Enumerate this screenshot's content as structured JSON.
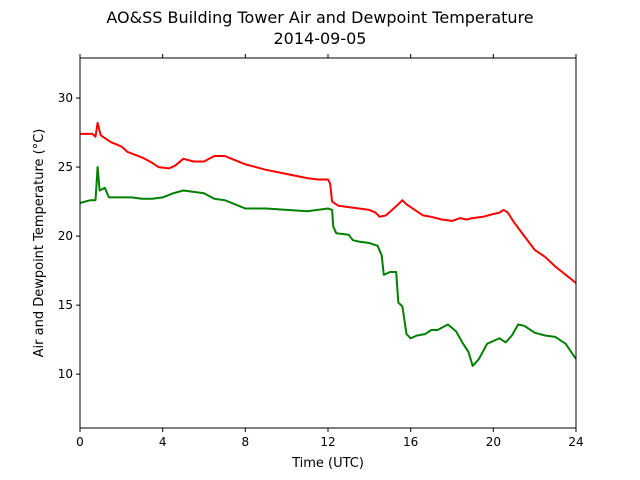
{
  "chart_data": {
    "type": "line",
    "title_line1": "AO&SS Building Tower Air and Dewpoint Temperature",
    "title_line2": "2014-09-05",
    "xlabel": "Time (UTC)",
    "ylabel": "Air and Dewpoint Temperature (°C)",
    "xlim": [
      0,
      24
    ],
    "ylim": [
      6.1,
      32.9
    ],
    "xticks": [
      0,
      4,
      8,
      12,
      16,
      20,
      24
    ],
    "yticks": [
      10,
      15,
      20,
      25,
      30
    ],
    "grid": false,
    "series": [
      {
        "color": "#ff0000",
        "points": [
          [
            0,
            27.4
          ],
          [
            0.6,
            27.4
          ],
          [
            0.75,
            27.2
          ],
          [
            0.85,
            28.2
          ],
          [
            1.0,
            27.3
          ],
          [
            1.5,
            26.8
          ],
          [
            2.0,
            26.5
          ],
          [
            2.3,
            26.1
          ],
          [
            3.0,
            25.7
          ],
          [
            3.5,
            25.3
          ],
          [
            3.8,
            25.0
          ],
          [
            4.3,
            24.9
          ],
          [
            4.6,
            25.1
          ],
          [
            5.0,
            25.6
          ],
          [
            5.5,
            25.4
          ],
          [
            6.0,
            25.4
          ],
          [
            6.5,
            25.8
          ],
          [
            7.0,
            25.8
          ],
          [
            7.5,
            25.5
          ],
          [
            8.0,
            25.2
          ],
          [
            9.0,
            24.8
          ],
          [
            10.0,
            24.5
          ],
          [
            11.0,
            24.2
          ],
          [
            11.5,
            24.1
          ],
          [
            12.0,
            24.1
          ],
          [
            12.1,
            23.8
          ],
          [
            12.2,
            22.5
          ],
          [
            12.5,
            22.2
          ],
          [
            13.0,
            22.1
          ],
          [
            13.5,
            22.0
          ],
          [
            14.0,
            21.9
          ],
          [
            14.3,
            21.7
          ],
          [
            14.5,
            21.4
          ],
          [
            14.8,
            21.5
          ],
          [
            15.1,
            21.9
          ],
          [
            15.4,
            22.3
          ],
          [
            15.6,
            22.6
          ],
          [
            15.8,
            22.3
          ],
          [
            16.2,
            21.9
          ],
          [
            16.6,
            21.5
          ],
          [
            17.0,
            21.4
          ],
          [
            17.5,
            21.2
          ],
          [
            18.0,
            21.1
          ],
          [
            18.4,
            21.3
          ],
          [
            18.7,
            21.2
          ],
          [
            19.0,
            21.3
          ],
          [
            19.5,
            21.4
          ],
          [
            20.0,
            21.6
          ],
          [
            20.3,
            21.7
          ],
          [
            20.5,
            21.9
          ],
          [
            20.7,
            21.7
          ],
          [
            21.0,
            21.0
          ],
          [
            21.5,
            20.0
          ],
          [
            22.0,
            19.0
          ],
          [
            22.5,
            18.5
          ],
          [
            23.0,
            17.8
          ],
          [
            23.5,
            17.2
          ],
          [
            24.0,
            16.6
          ]
        ]
      },
      {
        "color": "#008000",
        "points": [
          [
            0,
            22.4
          ],
          [
            0.5,
            22.6
          ],
          [
            0.75,
            22.6
          ],
          [
            0.85,
            25.0
          ],
          [
            0.95,
            23.3
          ],
          [
            1.2,
            23.5
          ],
          [
            1.4,
            22.8
          ],
          [
            2.0,
            22.8
          ],
          [
            2.5,
            22.8
          ],
          [
            3.0,
            22.7
          ],
          [
            3.5,
            22.7
          ],
          [
            4.0,
            22.8
          ],
          [
            4.5,
            23.1
          ],
          [
            5.0,
            23.3
          ],
          [
            5.5,
            23.2
          ],
          [
            6.0,
            23.1
          ],
          [
            6.5,
            22.7
          ],
          [
            7.0,
            22.6
          ],
          [
            7.5,
            22.3
          ],
          [
            8.0,
            22.0
          ],
          [
            9.0,
            22.0
          ],
          [
            10.0,
            21.9
          ],
          [
            11.0,
            21.8
          ],
          [
            11.5,
            21.9
          ],
          [
            12.0,
            22.0
          ],
          [
            12.2,
            21.9
          ],
          [
            12.25,
            20.7
          ],
          [
            12.4,
            20.2
          ],
          [
            13.0,
            20.1
          ],
          [
            13.2,
            19.7
          ],
          [
            13.5,
            19.6
          ],
          [
            14.0,
            19.5
          ],
          [
            14.4,
            19.3
          ],
          [
            14.6,
            18.6
          ],
          [
            14.7,
            17.2
          ],
          [
            15.0,
            17.4
          ],
          [
            15.3,
            17.4
          ],
          [
            15.4,
            15.2
          ],
          [
            15.6,
            14.9
          ],
          [
            15.8,
            12.9
          ],
          [
            16.0,
            12.6
          ],
          [
            16.3,
            12.8
          ],
          [
            16.7,
            12.9
          ],
          [
            17.0,
            13.2
          ],
          [
            17.3,
            13.2
          ],
          [
            17.8,
            13.6
          ],
          [
            18.2,
            13.1
          ],
          [
            18.5,
            12.3
          ],
          [
            18.8,
            11.6
          ],
          [
            19.0,
            10.6
          ],
          [
            19.3,
            11.1
          ],
          [
            19.7,
            12.2
          ],
          [
            20.0,
            12.4
          ],
          [
            20.3,
            12.6
          ],
          [
            20.6,
            12.3
          ],
          [
            20.9,
            12.8
          ],
          [
            21.2,
            13.6
          ],
          [
            21.5,
            13.5
          ],
          [
            22.0,
            13.0
          ],
          [
            22.5,
            12.8
          ],
          [
            23.0,
            12.7
          ],
          [
            23.5,
            12.2
          ],
          [
            24.0,
            11.1
          ]
        ]
      }
    ]
  }
}
